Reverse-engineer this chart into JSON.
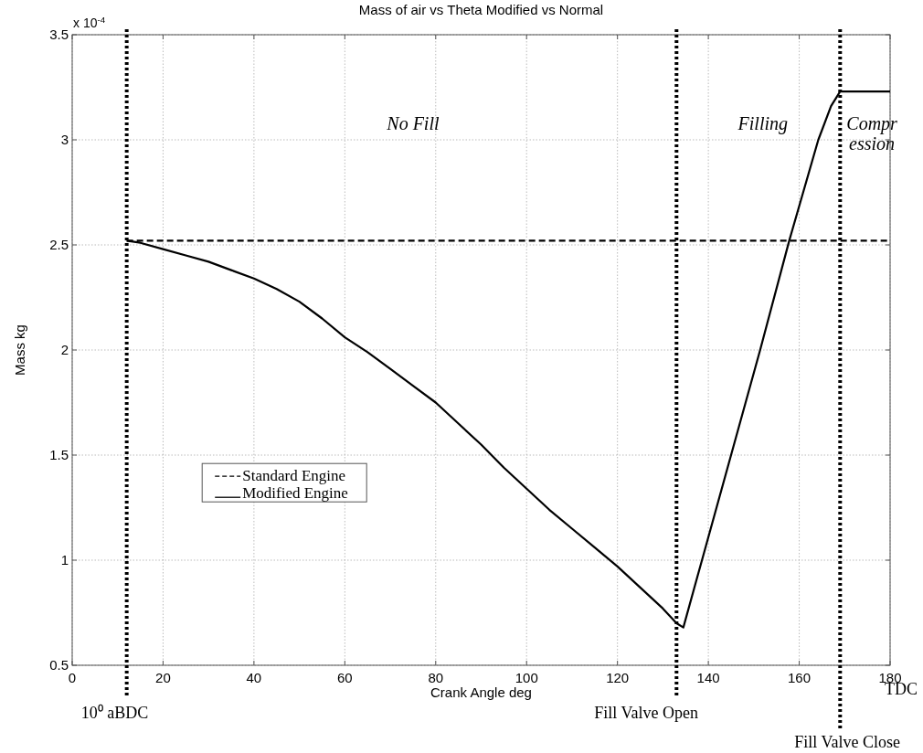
{
  "chart_data": {
    "type": "line",
    "title": "Mass of air  vs Theta Modified vs Normal",
    "xlabel": "Crank Angle deg",
    "ylabel": "Mass kg",
    "xlim": [
      0,
      180
    ],
    "xticks": [
      0,
      20,
      40,
      60,
      80,
      100,
      120,
      140,
      160,
      180
    ],
    "ylim": [
      0.5,
      3.5
    ],
    "yticks": [
      0.5,
      1,
      1.5,
      2,
      2.5,
      3,
      3.5
    ],
    "grid": true,
    "legend": "left",
    "series": [
      {
        "name": "Standard Engine",
        "color": "#000000",
        "line_style": "dashed",
        "x": [
          12,
          180
        ],
        "values": [
          2.52,
          2.52
        ]
      },
      {
        "name": "Modified Engine",
        "color": "#000000",
        "line_style": "solid",
        "x": [
          12,
          15,
          20,
          25,
          30,
          35,
          40,
          45,
          50,
          55,
          60,
          65,
          70,
          75,
          80,
          85,
          90,
          95,
          100,
          105,
          110,
          115,
          120,
          125,
          130,
          133,
          134.5,
          138.6,
          145,
          151.4,
          157.8,
          164.2,
          167,
          169,
          180
        ],
        "values": [
          2.52,
          2.51,
          2.48,
          2.45,
          2.42,
          2.38,
          2.34,
          2.29,
          2.23,
          2.15,
          2.06,
          1.99,
          1.91,
          1.83,
          1.75,
          1.65,
          1.55,
          1.44,
          1.34,
          1.24,
          1.15,
          1.06,
          0.97,
          0.87,
          0.77,
          0.7,
          0.68,
          1,
          1.5,
          2,
          2.52,
          3,
          3.16,
          3.23,
          3.23
        ]
      }
    ],
    "ref_lines": [
      {
        "axis": "x",
        "value": 12,
        "label": "10⁰ aBDC",
        "color": "#000000",
        "line_style": "dotted"
      },
      {
        "axis": "x",
        "value": 133,
        "label": "Fill Valve  Open",
        "color": "#000000",
        "line_style": "dotted"
      },
      {
        "axis": "x",
        "value": 169,
        "label": "Fill Valve  Close",
        "color": "#000000",
        "line_style": "dotted"
      }
    ],
    "annotations": [
      "x 10$^{-4}$",
      "No Fill",
      "Filling",
      "Compr\nession",
      "TDC"
    ]
  }
}
